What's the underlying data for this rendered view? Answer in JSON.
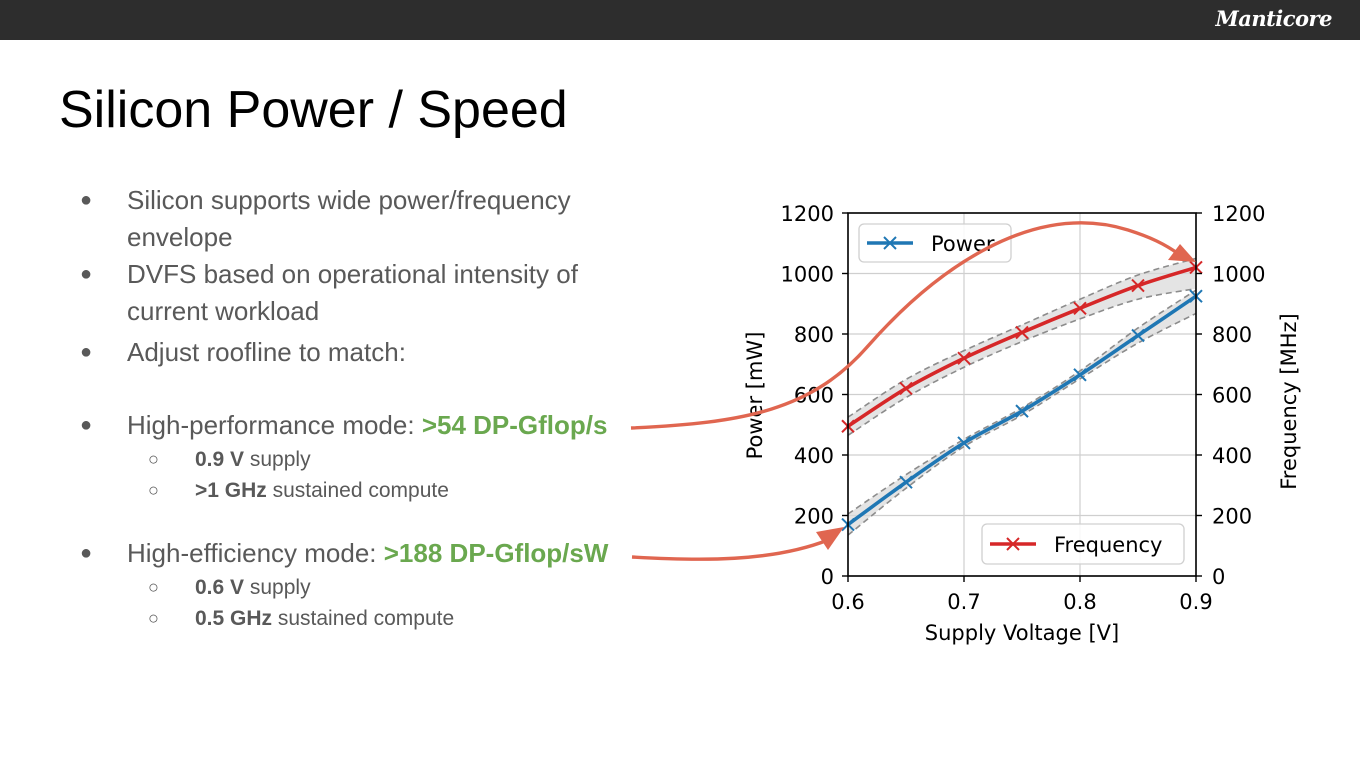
{
  "header": {
    "logo_text": "Manticore"
  },
  "slide": {
    "title": "Silicon Power / Speed",
    "bullets": [
      {
        "text": "Silicon supports wide power/frequency envelope"
      },
      {
        "text": "DVFS based on operational intensity of current workload"
      },
      {
        "text": "Adjust roofline to match:"
      }
    ],
    "modes": [
      {
        "label": "High-performance mode: ",
        "highlight": ">54 DP-Gflop/s",
        "sub": [
          {
            "bold": "0.9 V",
            "rest": " supply"
          },
          {
            "bold": ">1 GHz",
            "rest": " sustained compute"
          }
        ]
      },
      {
        "label": "High-efficiency mode: ",
        "highlight": ">188 DP-Gflop/sW",
        "sub": [
          {
            "bold": "0.6 V",
            "rest": " supply"
          },
          {
            "bold": "0.5 GHz",
            "rest": " sustained compute"
          }
        ]
      }
    ]
  },
  "chart_data": {
    "type": "line",
    "title": "",
    "xlabel": "Supply Voltage [V]",
    "ylabel": "Power [mW]",
    "y2label": "Frequency [MHz]",
    "xlim": [
      0.6,
      0.9
    ],
    "ylim": [
      0,
      1200
    ],
    "y2lim": [
      0,
      1200
    ],
    "xticks": [
      0.6,
      0.7,
      0.8,
      0.9
    ],
    "xtick_labels": [
      "0.6",
      "0.7",
      "0.8",
      "0.9"
    ],
    "yticks": [
      0,
      200,
      400,
      600,
      800,
      1000,
      1200
    ],
    "ytick_labels": [
      "0",
      "200",
      "400",
      "600",
      "800",
      "1000",
      "1200"
    ],
    "y2tick_labels": [
      "0",
      "200",
      "400",
      "600",
      "800",
      "1000",
      "1200"
    ],
    "grid": true,
    "series": [
      {
        "name": "Power",
        "axis": "left",
        "color": "#1f77b4",
        "marker": "x",
        "legend_position": "upper-left",
        "x": [
          0.6,
          0.65,
          0.7,
          0.75,
          0.8,
          0.85,
          0.9
        ],
        "values": [
          170,
          310,
          440,
          545,
          665,
          795,
          925
        ],
        "band_low": [
          135,
          290,
          428,
          532,
          652,
          770,
          868
        ],
        "band_high": [
          205,
          335,
          452,
          556,
          678,
          820,
          945
        ]
      },
      {
        "name": "Frequency",
        "axis": "right",
        "color": "#d62728",
        "marker": "x",
        "legend_position": "lower-right",
        "x": [
          0.6,
          0.65,
          0.7,
          0.75,
          0.8,
          0.85,
          0.9
        ],
        "values": [
          495,
          620,
          720,
          805,
          885,
          960,
          1020
        ],
        "band_low": [
          465,
          590,
          690,
          775,
          850,
          915,
          950
        ],
        "band_high": [
          525,
          650,
          745,
          830,
          915,
          995,
          1050
        ]
      }
    ],
    "band_color": "#d9d9d9",
    "band_edge_color": "#8c8c8c",
    "arrow_color": "#e06650"
  }
}
